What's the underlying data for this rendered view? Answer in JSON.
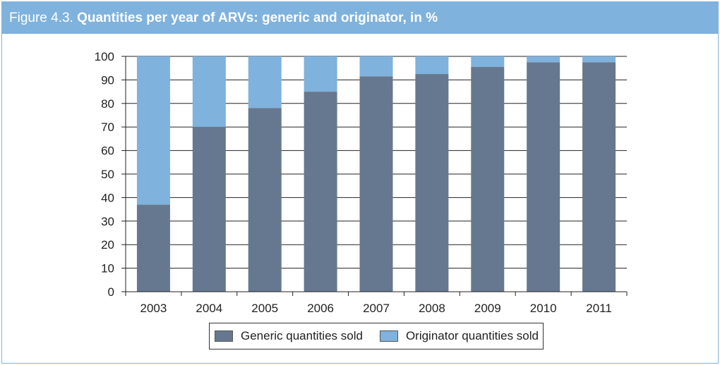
{
  "figure": {
    "number": "Figure 4.3.",
    "title": "Quantities per year of ARVs: generic and originator, in %"
  },
  "colors": {
    "header": "#7fb2dc",
    "generic": "#66788f",
    "originator": "#7fb2dc"
  },
  "chart_data": {
    "type": "bar",
    "stacked": true,
    "categories": [
      "2003",
      "2004",
      "2005",
      "2006",
      "2007",
      "2008",
      "2009",
      "2010",
      "2011"
    ],
    "series": [
      {
        "name": "Generic quantities sold",
        "values": [
          37,
          70,
          78,
          85,
          91.5,
          92.5,
          95.5,
          97.5,
          97.5
        ]
      },
      {
        "name": "Originator quantities sold",
        "values": [
          63,
          30,
          22,
          15,
          8.5,
          7.5,
          4.5,
          2.5,
          2.5
        ]
      }
    ],
    "ylim": [
      0,
      100
    ],
    "yticks": [
      "0",
      "10",
      "20",
      "30",
      "40",
      "50",
      "60",
      "70",
      "80",
      "90",
      "100"
    ],
    "grid": true,
    "legend": "bottom"
  }
}
